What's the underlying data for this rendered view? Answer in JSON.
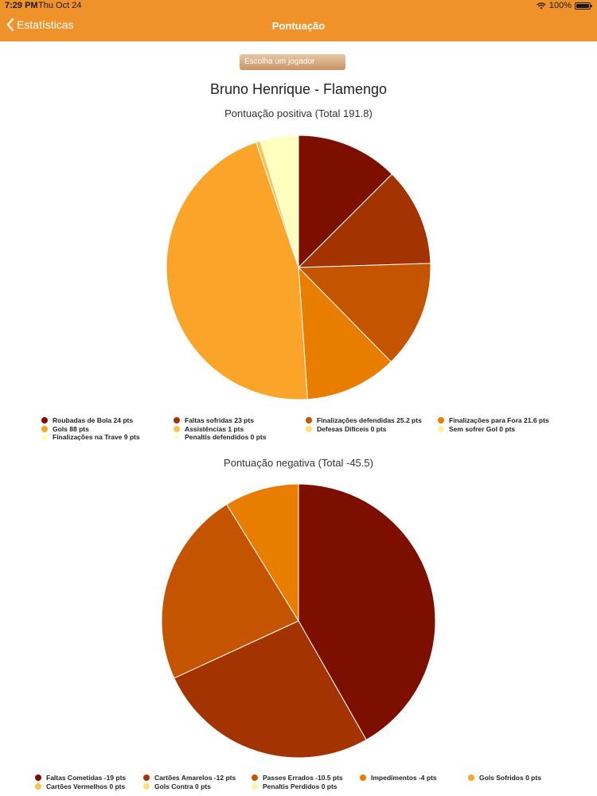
{
  "status": {
    "time": "7:29 PM",
    "date": "Thu Oct 24",
    "battery": "100%"
  },
  "nav": {
    "back_label": "Estatísticas",
    "title": "Pontuação"
  },
  "picker_label": "Escolha um jogador",
  "player_title": "Bruno Henrique - Flamengo",
  "colors": {
    "bar": "#f0922a"
  },
  "chart_data": [
    {
      "type": "pie",
      "title": "Pontuação positiva (Total 191.8)",
      "slices": [
        {
          "label": "Roubadas de Bola 24 pts",
          "value": 24,
          "color": "#7d0f00"
        },
        {
          "label": "Faltas sofridas 23 pts",
          "value": 23,
          "color": "#a33300"
        },
        {
          "label": "Finalizações defendidas 25.2 pts",
          "value": 25.2,
          "color": "#c45400"
        },
        {
          "label": "Finalizações para Fora 21.6 pts",
          "value": 21.6,
          "color": "#e87d00"
        },
        {
          "label": "Gols 88 pts",
          "value": 88,
          "color": "#fba42a"
        },
        {
          "label": "Assistências 1 pts",
          "value": 1,
          "color": "#fcc24c"
        },
        {
          "label": "Defesas Difíceis 0 pts",
          "value": 0,
          "color": "#fde07a"
        },
        {
          "label": "Sem sofrer Gol 0 pts",
          "value": 0,
          "color": "#fff0a4"
        },
        {
          "label": "Finalizações na Trave 9 pts",
          "value": 9,
          "color": "#ffffbe"
        },
        {
          "label": "Penaltis defendidos 0 pts",
          "value": 0,
          "color": "#ffffd6"
        }
      ]
    },
    {
      "type": "pie",
      "title": "Pontuação negativa (Total -45.5)",
      "slices": [
        {
          "label": "Faltas Cometidas -19 pts",
          "value": 19,
          "color": "#7d0f00"
        },
        {
          "label": "Cartões Amarelos -12 pts",
          "value": 12,
          "color": "#a33300"
        },
        {
          "label": "Passes Errados -10.5 pts",
          "value": 10.5,
          "color": "#c45400"
        },
        {
          "label": "Impedimentos -4 pts",
          "value": 4,
          "color": "#e87d00"
        },
        {
          "label": "Gols Sofridos 0 pts",
          "value": 0,
          "color": "#fba42a"
        },
        {
          "label": "Cartões Vermelhos 0 pts",
          "value": 0,
          "color": "#fcc24c"
        },
        {
          "label": "Gols Contra 0 pts",
          "value": 0,
          "color": "#fde07a"
        },
        {
          "label": "Penaltis Perdidos 0 pts",
          "value": 0,
          "color": "#fff0a4"
        }
      ]
    }
  ]
}
